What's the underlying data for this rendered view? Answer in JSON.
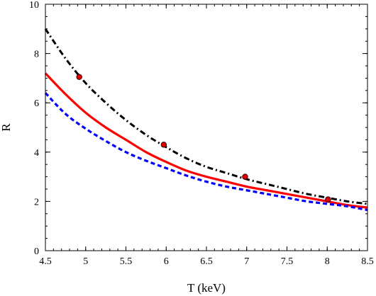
{
  "chart_data": {
    "type": "line",
    "xlabel": "T (keV)",
    "ylabel": "R",
    "xlim": [
      4.5,
      8.5
    ],
    "ylim": [
      0,
      10
    ],
    "x_ticks": [
      4.5,
      5,
      5.5,
      6,
      6.5,
      7,
      7.5,
      8,
      8.5
    ],
    "x_tick_labels": [
      "4.5",
      "5",
      "5.5",
      "6",
      "6.5",
      "7",
      "7.5",
      "8",
      "8.5"
    ],
    "y_ticks": [
      0,
      2,
      4,
      6,
      8,
      10
    ],
    "y_tick_labels": [
      "0",
      "2",
      "4",
      "6",
      "8",
      "10"
    ],
    "grid": false,
    "series": [
      {
        "style": "dash-dot",
        "color": "#000000",
        "x": [
          4.5,
          4.75,
          5.0,
          5.25,
          5.5,
          5.75,
          6.0,
          6.25,
          6.5,
          6.75,
          7.0,
          7.25,
          7.5,
          7.75,
          8.0,
          8.25,
          8.5
        ],
        "y": [
          9.0,
          7.8,
          6.8,
          6.0,
          5.3,
          4.7,
          4.2,
          3.75,
          3.4,
          3.15,
          2.9,
          2.7,
          2.5,
          2.3,
          2.15,
          2.0,
          1.9
        ]
      },
      {
        "style": "solid",
        "color": "#ff0000",
        "x": [
          4.5,
          4.75,
          5.0,
          5.25,
          5.5,
          5.75,
          6.0,
          6.25,
          6.5,
          6.75,
          7.0,
          7.25,
          7.5,
          7.75,
          8.0,
          8.25,
          8.5
        ],
        "y": [
          7.2,
          6.35,
          5.6,
          5.0,
          4.5,
          4.0,
          3.6,
          3.25,
          3.0,
          2.8,
          2.6,
          2.45,
          2.3,
          2.15,
          2.0,
          1.85,
          1.75
        ]
      },
      {
        "style": "dashed",
        "color": "#0000ff",
        "x": [
          4.5,
          4.75,
          5.0,
          5.25,
          5.5,
          5.75,
          6.0,
          6.25,
          6.5,
          6.75,
          7.0,
          7.25,
          7.5,
          7.75,
          8.0,
          8.25,
          8.5
        ],
        "y": [
          6.4,
          5.55,
          4.95,
          4.45,
          4.0,
          3.65,
          3.35,
          3.05,
          2.8,
          2.6,
          2.45,
          2.3,
          2.15,
          2.0,
          1.9,
          1.8,
          1.65
        ]
      },
      {
        "style": "points",
        "color": "#dd0000",
        "x": [
          4.92,
          5.97,
          6.98,
          8.01
        ],
        "y": [
          7.05,
          4.3,
          3.0,
          2.08
        ]
      }
    ]
  }
}
